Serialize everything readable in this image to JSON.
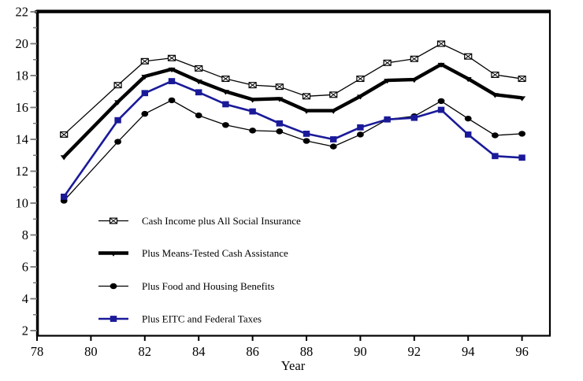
{
  "figure": {
    "background": "#ffffff",
    "frame_color": "#000000",
    "y_tick_color": "#777777",
    "x_tick_color": "#000000"
  },
  "chart_data": {
    "type": "line",
    "title": "",
    "xlabel": "Year",
    "ylabel": "",
    "xlim": [
      78,
      97
    ],
    "ylim": [
      2,
      22
    ],
    "grid": false,
    "legend_position": "inside-lower-left",
    "x_ticks": [
      78,
      80,
      82,
      84,
      86,
      88,
      90,
      92,
      94,
      96
    ],
    "y_ticks_major": [
      2,
      4,
      6,
      8,
      10,
      12,
      14,
      16,
      18,
      20,
      22
    ],
    "y_ticks_minor": [
      3,
      5,
      7,
      9,
      11,
      13,
      15,
      17,
      19,
      21
    ],
    "x": [
      79,
      81,
      82,
      83,
      84,
      85,
      86,
      87,
      88,
      89,
      90,
      91,
      92,
      93,
      94,
      95,
      96
    ],
    "series": [
      {
        "name": "Cash Income plus All Social Insurance",
        "marker": "crossed-square",
        "color": "#000000",
        "line_weight": "thin",
        "values": [
          14.3,
          17.4,
          18.9,
          19.1,
          18.45,
          17.8,
          17.4,
          17.3,
          16.7,
          16.8,
          17.8,
          18.8,
          19.05,
          20.0,
          19.2,
          18.05,
          17.8
        ]
      },
      {
        "name": "Plus Means-Tested Cash Assistance",
        "marker": "triangle-down",
        "color": "#000000",
        "line_weight": "thick",
        "values": [
          12.9,
          16.35,
          17.95,
          18.4,
          17.65,
          17.0,
          16.5,
          16.55,
          15.8,
          15.8,
          16.7,
          17.7,
          17.75,
          18.7,
          17.8,
          16.8,
          16.6
        ]
      },
      {
        "name": "Plus Food and Housing Benefits",
        "marker": "circle",
        "color": "#000000",
        "line_weight": "thin",
        "values": [
          10.15,
          13.85,
          15.6,
          16.45,
          15.5,
          14.9,
          14.55,
          14.5,
          13.9,
          13.55,
          14.3,
          15.25,
          15.45,
          16.4,
          15.3,
          14.25,
          14.35
        ]
      },
      {
        "name": "Plus EITC and Federal Taxes",
        "marker": "square",
        "color": "#1a1a99",
        "line_weight": "medium",
        "values": [
          10.4,
          15.2,
          16.9,
          17.65,
          16.95,
          16.2,
          15.75,
          15.0,
          14.35,
          14.0,
          14.75,
          15.25,
          15.35,
          15.85,
          14.3,
          12.95,
          12.85
        ]
      }
    ]
  }
}
